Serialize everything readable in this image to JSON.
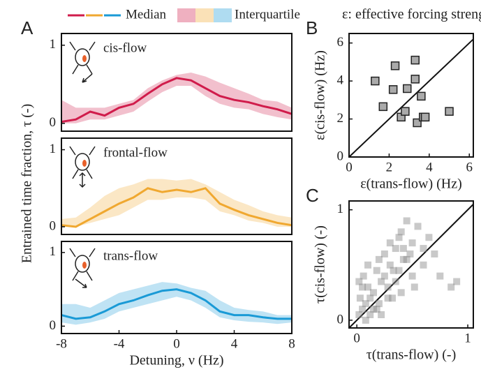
{
  "chart_data": [
    {
      "type": "line",
      "panel": "A",
      "legend": [
        "Median",
        "Interquartile"
      ],
      "ylabel": "Entrained time fraction, τ (-)",
      "xlim": [
        -8,
        8
      ],
      "ylim": [
        -0.1,
        1.15
      ],
      "yticks": [
        0,
        1
      ],
      "x": [
        -8,
        -7,
        -6,
        -5,
        -4,
        -3,
        -2,
        -1,
        0,
        1,
        2,
        3,
        4,
        5,
        6,
        7,
        8
      ],
      "series": [
        {
          "name": "cis-flow",
          "color": "#d01c4b",
          "values": [
            0.02,
            0.05,
            0.15,
            0.1,
            0.2,
            0.25,
            0.38,
            0.5,
            0.58,
            0.55,
            0.45,
            0.35,
            0.3,
            0.27,
            0.22,
            0.18,
            0.12
          ],
          "lower": [
            0,
            0,
            0.05,
            0.05,
            0.1,
            0.15,
            0.28,
            0.4,
            0.48,
            0.48,
            0.35,
            0.25,
            0.2,
            0.18,
            0.12,
            0.08,
            0.05
          ],
          "upper": [
            0.3,
            0.2,
            0.2,
            0.2,
            0.25,
            0.3,
            0.45,
            0.55,
            0.62,
            0.65,
            0.6,
            0.52,
            0.45,
            0.38,
            0.3,
            0.28,
            0.2
          ]
        }
      ]
    },
    {
      "type": "line",
      "xlim": [
        -8,
        8
      ],
      "ylim": [
        -0.1,
        1.15
      ],
      "yticks": [
        0,
        1
      ],
      "x": [
        -8,
        -7,
        -6,
        -5,
        -4,
        -3,
        -2,
        -1,
        0,
        1,
        2,
        3,
        4,
        5,
        6,
        7,
        8
      ],
      "series": [
        {
          "name": "frontal-flow",
          "color": "#f0a830",
          "values": [
            0.02,
            0,
            0.1,
            0.2,
            0.3,
            0.38,
            0.5,
            0.45,
            0.48,
            0.45,
            0.5,
            0.3,
            0.22,
            0.15,
            0.1,
            0.05,
            0.02
          ],
          "lower": [
            0,
            0,
            0.05,
            0.1,
            0.15,
            0.25,
            0.35,
            0.35,
            0.38,
            0.38,
            0.35,
            0.2,
            0.15,
            0.08,
            0.05,
            0,
            0
          ],
          "upper": [
            0.1,
            0.12,
            0.25,
            0.4,
            0.5,
            0.55,
            0.62,
            0.62,
            0.6,
            0.62,
            0.55,
            0.45,
            0.35,
            0.28,
            0.2,
            0.15,
            0.12
          ]
        }
      ]
    },
    {
      "type": "line",
      "xlabel": "Detuning, ν (Hz)",
      "xlim": [
        -8,
        8
      ],
      "xticks": [
        -8,
        -4,
        0,
        4,
        8
      ],
      "ylim": [
        -0.1,
        1.15
      ],
      "yticks": [
        0,
        1
      ],
      "x": [
        -8,
        -7,
        -6,
        -5,
        -4,
        -3,
        -2,
        -1,
        0,
        1,
        2,
        3,
        4,
        5,
        6,
        7,
        8
      ],
      "series": [
        {
          "name": "trans-flow",
          "color": "#1a9ad6",
          "values": [
            0.15,
            0.1,
            0.12,
            0.2,
            0.3,
            0.35,
            0.42,
            0.48,
            0.5,
            0.45,
            0.35,
            0.2,
            0.15,
            0.15,
            0.12,
            0.1,
            0.1
          ],
          "lower": [
            0.05,
            0.02,
            0.05,
            0.1,
            0.2,
            0.25,
            0.3,
            0.35,
            0.4,
            0.35,
            0.25,
            0.12,
            0.08,
            0.06,
            0.05,
            0.03,
            0.05
          ],
          "upper": [
            0.3,
            0.3,
            0.25,
            0.35,
            0.45,
            0.5,
            0.55,
            0.6,
            0.58,
            0.52,
            0.48,
            0.35,
            0.25,
            0.22,
            0.2,
            0.15,
            0.15
          ]
        }
      ]
    },
    {
      "type": "scatter",
      "panel": "B",
      "title": "ε: effective forcing strength",
      "xlabel": "ε(trans-flow) (Hz)",
      "ylabel": "ε(cis-flow) (Hz)",
      "xlim": [
        0,
        6.2
      ],
      "xticks": [
        0,
        2,
        4,
        6
      ],
      "ylim": [
        0,
        6.5
      ],
      "yticks": [
        0,
        2,
        4,
        6
      ],
      "color": "#aaaaaa",
      "x": [
        1.3,
        1.7,
        2.2,
        2.3,
        2.6,
        2.8,
        2.9,
        3.3,
        3.3,
        3.4,
        3.6,
        3.7,
        3.8,
        5.0
      ],
      "values": [
        4.0,
        2.65,
        3.55,
        4.8,
        2.1,
        2.4,
        3.6,
        5.1,
        4.1,
        1.8,
        3.2,
        2.1,
        2.1,
        2.4
      ]
    },
    {
      "type": "scatter",
      "panel": "C",
      "xlabel": "τ(trans-flow) (-)",
      "ylabel": "τ(cis-flow) (-)",
      "xlim": [
        -0.07,
        1.05
      ],
      "xticks": [
        0,
        1
      ],
      "ylim": [
        -0.07,
        1.08
      ],
      "yticks": [
        0,
        1
      ],
      "color": "#888888",
      "x": [
        0.02,
        0.05,
        0.03,
        0.08,
        0.1,
        0.12,
        0.06,
        0.15,
        0.18,
        0.2,
        0.22,
        0.25,
        0.28,
        0.3,
        0.32,
        0.35,
        0.38,
        0.4,
        0.42,
        0.45,
        0.48,
        0.5,
        0.55,
        0.6,
        0.65,
        0.7,
        0.75,
        0.85,
        0.9,
        0.1,
        0.15,
        0.2,
        0.25,
        0.3,
        0.35,
        0.4,
        0.45,
        0.5,
        0.05,
        0.08,
        0.12,
        0.18,
        0.22,
        0.28,
        0.33,
        0.38,
        0.42,
        0.6,
        0.52,
        0.02
      ],
      "values": [
        0.05,
        0.1,
        0.2,
        0.15,
        0.3,
        0.05,
        0.4,
        0.25,
        0.45,
        0.15,
        0.35,
        0.6,
        0.3,
        0.5,
        0.2,
        0.65,
        0.45,
        0.8,
        0.55,
        0.9,
        0.6,
        0.7,
        0.85,
        0.5,
        0.75,
        0.6,
        0.4,
        0.3,
        0.35,
        0.5,
        0.1,
        0.55,
        0.4,
        0.7,
        0.35,
        0.25,
        0.55,
        0.4,
        0.3,
        0,
        0.2,
        0.1,
        0.05,
        0.2,
        0.45,
        0.75,
        0.65,
        0.65,
        0.3,
        0.35
      ]
    }
  ]
}
